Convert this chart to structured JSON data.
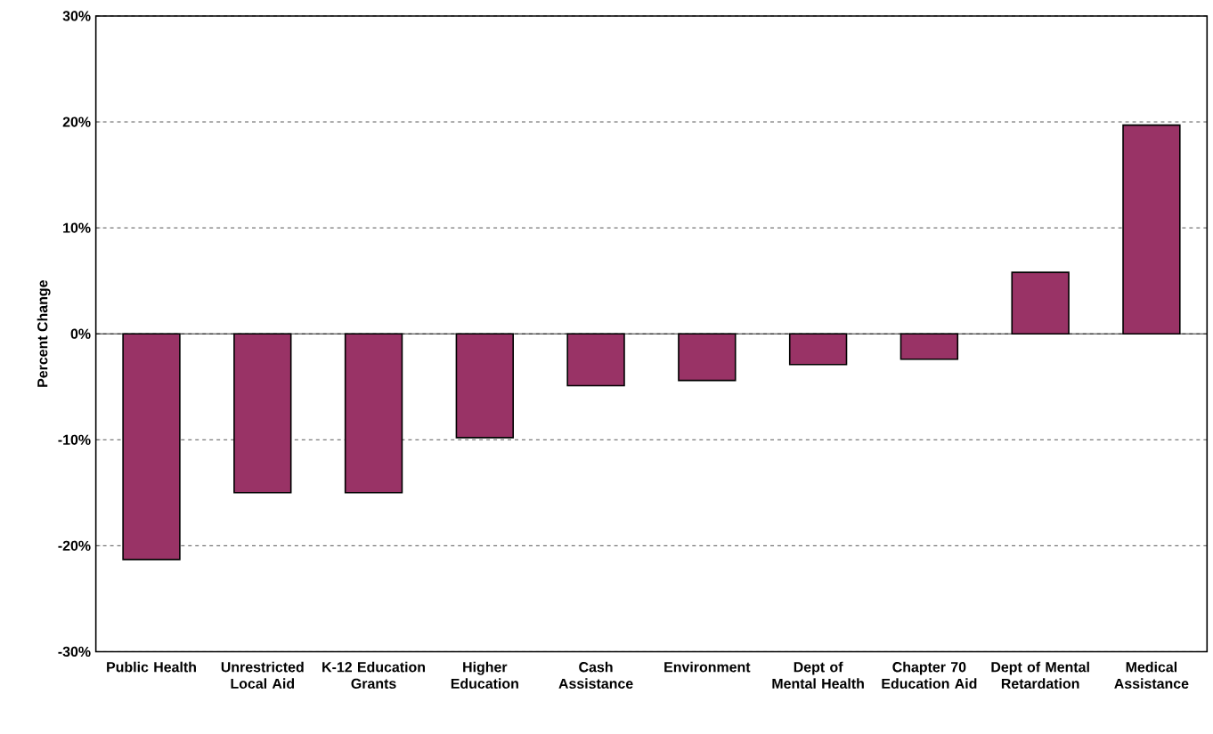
{
  "chart_data": {
    "type": "bar",
    "ylabel": "Percent Change",
    "categories": [
      "Public Health",
      "Unrestricted Local Aid",
      "K-12 Education Grants",
      "Higher Education",
      "Cash Assistance",
      "Environment",
      "Dept of Mental Health",
      "Chapter 70 Education Aid",
      "Dept of Mental Retardation",
      "Medical Assistance"
    ],
    "values": [
      -21.3,
      -15.0,
      -15.0,
      -9.8,
      -4.9,
      -4.4,
      -2.9,
      -2.4,
      5.8,
      19.7
    ],
    "color": "#993366",
    "ylim": [
      -30,
      30
    ],
    "yticks": [
      {
        "value": -30,
        "label": "-30%"
      },
      {
        "value": -20,
        "label": "-20%"
      },
      {
        "value": -10,
        "label": "-10%"
      },
      {
        "value": 0,
        "label": "0%"
      },
      {
        "value": 10,
        "label": "10%"
      },
      {
        "value": 20,
        "label": "20%"
      },
      {
        "value": 30,
        "label": "30%"
      }
    ],
    "grid": "y"
  }
}
